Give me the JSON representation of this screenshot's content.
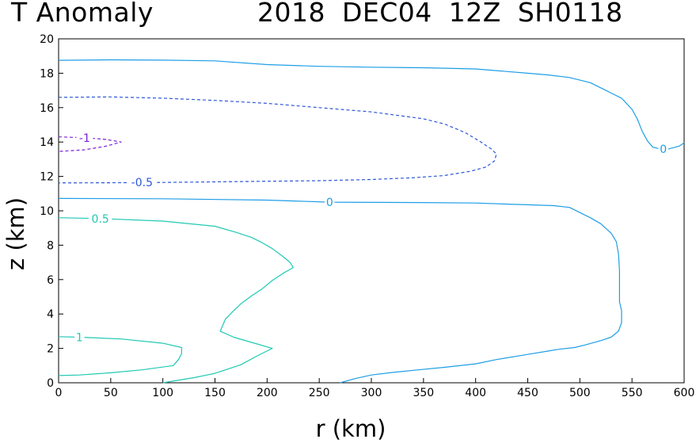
{
  "title_left": "T Anomaly",
  "title_right": "2018 DEC04 12Z  SH0118",
  "chart_data": {
    "type": "contour",
    "xlabel": "r (km)",
    "ylabel": "z (km)",
    "xlim": [
      0,
      600
    ],
    "ylim": [
      0,
      20
    ],
    "xticks": [
      0,
      50,
      100,
      150,
      200,
      250,
      300,
      350,
      400,
      450,
      500,
      550,
      600
    ],
    "yticks": [
      0,
      2,
      4,
      6,
      8,
      10,
      12,
      14,
      16,
      18,
      20
    ],
    "grid": false,
    "contours": [
      {
        "level": 0,
        "label": "0",
        "color": "#1e9ee6",
        "dashed": false,
        "label_at": [
          580,
          13.6
        ],
        "points": [
          [
            0,
            18.75
          ],
          [
            50,
            18.78
          ],
          [
            100,
            18.76
          ],
          [
            150,
            18.72
          ],
          [
            200,
            18.5
          ],
          [
            250,
            18.4
          ],
          [
            300,
            18.35
          ],
          [
            350,
            18.32
          ],
          [
            400,
            18.25
          ],
          [
            450,
            18.0
          ],
          [
            470,
            17.9
          ],
          [
            490,
            17.75
          ],
          [
            500,
            17.6
          ],
          [
            510,
            17.45
          ],
          [
            520,
            17.15
          ],
          [
            530,
            16.85
          ],
          [
            540,
            16.55
          ],
          [
            550,
            15.9
          ],
          [
            555,
            15.35
          ],
          [
            560,
            14.6
          ],
          [
            565,
            14.05
          ],
          [
            570,
            13.7
          ],
          [
            577,
            13.6
          ],
          [
            585,
            13.6
          ],
          [
            595,
            13.75
          ],
          [
            600,
            13.95
          ]
        ]
      },
      {
        "level": 0,
        "label": "0",
        "color": "#1e9ee6",
        "dashed": false,
        "label_at": [
          260,
          10.5
        ],
        "points": [
          [
            0,
            10.72
          ],
          [
            100,
            10.7
          ],
          [
            200,
            10.62
          ],
          [
            260,
            10.5
          ],
          [
            350,
            10.48
          ],
          [
            400,
            10.45
          ],
          [
            450,
            10.35
          ],
          [
            475,
            10.3
          ],
          [
            490,
            10.2
          ],
          [
            500,
            9.9
          ],
          [
            510,
            9.6
          ],
          [
            520,
            9.25
          ],
          [
            530,
            8.7
          ],
          [
            535,
            8.2
          ],
          [
            537,
            7.5
          ],
          [
            538,
            6.5
          ],
          [
            538,
            5.5
          ],
          [
            538,
            4.7
          ],
          [
            540,
            4.2
          ],
          [
            540,
            3.5
          ],
          [
            537,
            3.0
          ],
          [
            530,
            2.65
          ],
          [
            520,
            2.45
          ],
          [
            505,
            2.2
          ],
          [
            495,
            2.05
          ],
          [
            480,
            1.95
          ],
          [
            470,
            1.85
          ],
          [
            450,
            1.65
          ],
          [
            420,
            1.35
          ],
          [
            400,
            1.1
          ],
          [
            370,
            0.9
          ],
          [
            345,
            0.75
          ],
          [
            320,
            0.6
          ],
          [
            300,
            0.45
          ],
          [
            285,
            0.25
          ],
          [
            270,
            0
          ]
        ]
      },
      {
        "level": -0.5,
        "label": "-0.5",
        "color": "#2d58d8",
        "dashed": true,
        "label_at": [
          80,
          11.65
        ],
        "points": [
          [
            0,
            16.6
          ],
          [
            50,
            16.62
          ],
          [
            100,
            16.55
          ],
          [
            150,
            16.42
          ],
          [
            200,
            16.25
          ],
          [
            250,
            16.0
          ],
          [
            300,
            15.75
          ],
          [
            350,
            15.35
          ],
          [
            370,
            15.05
          ],
          [
            390,
            14.55
          ],
          [
            405,
            14.0
          ],
          [
            415,
            13.6
          ],
          [
            420,
            13.3
          ],
          [
            418,
            12.9
          ],
          [
            410,
            12.55
          ],
          [
            395,
            12.3
          ],
          [
            370,
            12.05
          ],
          [
            340,
            11.92
          ],
          [
            300,
            11.82
          ],
          [
            250,
            11.75
          ],
          [
            200,
            11.72
          ],
          [
            150,
            11.68
          ],
          [
            100,
            11.65
          ],
          [
            50,
            11.63
          ],
          [
            0,
            11.62
          ]
        ]
      },
      {
        "level": -1,
        "label": "-1",
        "color": "#7a1fd8",
        "dashed": true,
        "label_at": [
          25,
          14.25
        ],
        "points": [
          [
            0,
            14.3
          ],
          [
            25,
            14.25
          ],
          [
            45,
            14.15
          ],
          [
            60,
            14.0
          ],
          [
            45,
            13.75
          ],
          [
            25,
            13.55
          ],
          [
            0,
            13.45
          ]
        ]
      },
      {
        "level": 0.5,
        "label": "0.5",
        "color": "#1fc9b4",
        "dashed": false,
        "label_at": [
          40,
          9.55
        ],
        "points": [
          [
            0,
            9.6
          ],
          [
            40,
            9.55
          ],
          [
            100,
            9.4
          ],
          [
            150,
            9.1
          ],
          [
            170,
            8.75
          ],
          [
            185,
            8.45
          ],
          [
            195,
            8.15
          ],
          [
            205,
            7.8
          ],
          [
            215,
            7.35
          ],
          [
            222,
            7.0
          ],
          [
            225,
            6.7
          ],
          [
            215,
            6.35
          ],
          [
            205,
            5.95
          ],
          [
            195,
            5.45
          ],
          [
            185,
            5.05
          ],
          [
            175,
            4.6
          ],
          [
            168,
            4.2
          ],
          [
            160,
            3.7
          ],
          [
            155,
            3.0
          ],
          [
            168,
            2.65
          ],
          [
            185,
            2.35
          ],
          [
            205,
            2.0
          ],
          [
            190,
            1.55
          ],
          [
            175,
            1.05
          ],
          [
            150,
            0.55
          ],
          [
            130,
            0.3
          ],
          [
            100,
            0
          ]
        ]
      },
      {
        "level": 1,
        "label": "1",
        "color": "#1fc9b4",
        "dashed": false,
        "label_at": [
          20,
          2.65
        ],
        "points": [
          [
            0,
            2.68
          ],
          [
            20,
            2.65
          ],
          [
            60,
            2.55
          ],
          [
            100,
            2.3
          ],
          [
            118,
            2.05
          ],
          [
            118,
            1.7
          ],
          [
            115,
            1.35
          ],
          [
            110,
            1.0
          ],
          [
            80,
            0.75
          ],
          [
            50,
            0.58
          ],
          [
            20,
            0.45
          ],
          [
            0,
            0.42
          ]
        ]
      }
    ]
  }
}
